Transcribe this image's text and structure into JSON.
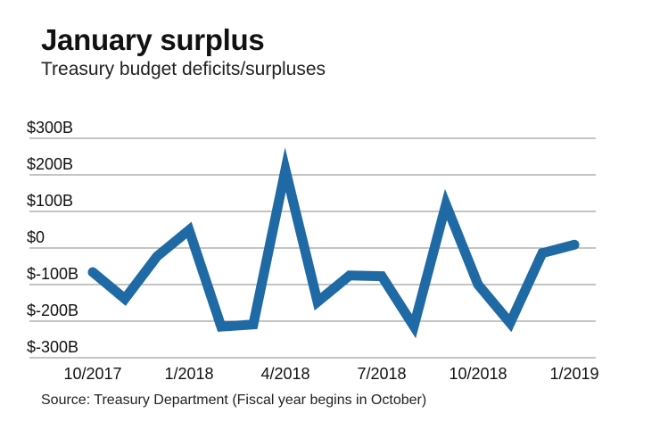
{
  "chart_data": {
    "type": "line",
    "title": "January surplus",
    "subtitle": "Treasury budget deficits/surpluses",
    "source": "Source: Treasury Department (Fiscal year begins in October)",
    "xlabel": "",
    "ylabel": "",
    "ylim": [
      -300,
      300
    ],
    "y_unit": "billions of dollars",
    "yticks": [
      300,
      200,
      100,
      0,
      -100,
      -200,
      -300
    ],
    "ytick_labels": [
      "$300B",
      "$200B",
      "$100B",
      "$0",
      "$-100B",
      "$-200B",
      "$-300B"
    ],
    "xtick_labels": [
      "10/2017",
      "1/2018",
      "4/2018",
      "7/2018",
      "10/2018",
      "1/2019"
    ],
    "x": [
      "10/2017",
      "11/2017",
      "12/2017",
      "1/2018",
      "2/2018",
      "3/2018",
      "4/2018",
      "5/2018",
      "6/2018",
      "7/2018",
      "8/2018",
      "9/2018",
      "10/2018",
      "11/2018",
      "12/2018",
      "1/2019"
    ],
    "values": [
      -66,
      -139,
      -23,
      49,
      -215,
      -209,
      214,
      -147,
      -75,
      -77,
      -214,
      119,
      -100,
      -205,
      -14,
      9
    ],
    "grid": true,
    "line_color": "#1f6aa5",
    "grid_color": "#888888"
  }
}
